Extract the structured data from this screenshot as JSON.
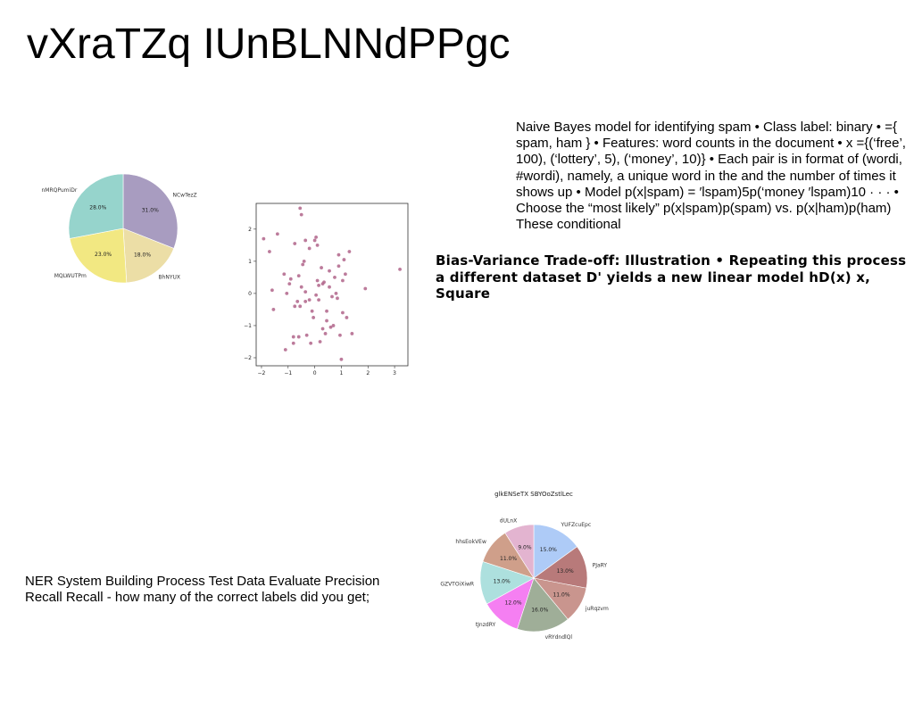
{
  "page": {
    "title": "vXraTZq IUnBLNNdPPgc",
    "paragraph_spam": "Naive Bayes model for identifying spam • Class label: binary • ={ spam, ham } • Features: word counts in the document • x ={(‘free’, 100), (‘lottery’, 5), (‘money’, 10)} • Each pair is in format of (wordi, #wordi), namely, a unique word in the and the number of times it shows up • Model p(x|spam) = ′lspam)5p(‘money ′lspam)10 · · · • Choose the “most likely” p(x|spam)p(spam) vs. p(x|ham)p(ham) These conditional",
    "paragraph_bias": "Bias-Variance Trade-off: Illustration • Repeating this process a different dataset D' yields a new linear model hD(x) x, Square",
    "paragraph_ner": "NER System Building Process Test Data Evaluate Precision Recall Recall - how many of the correct labels did you get;"
  },
  "chart_data": [
    {
      "type": "pie",
      "title": "",
      "labels": [
        "NCwTezZ",
        "BhNYUX",
        "MQLWUTPm",
        "nMRQPumiDr"
      ],
      "values": [
        31.0,
        18.0,
        23.0,
        28.0
      ],
      "value_labels": [
        "31.0%",
        "18.0%",
        "23.0%",
        "28.0%"
      ],
      "colors": [
        "#a89cc0",
        "#ecdea6",
        "#f2e882",
        "#96d4cc"
      ],
      "start_angle": 90,
      "direction": "clockwise"
    },
    {
      "type": "scatter",
      "title": "",
      "xlabel": "",
      "ylabel": "",
      "xlim": [
        -2.2,
        3.5
      ],
      "ylim": [
        -2.25,
        2.8
      ],
      "xticks": [
        -2,
        -1,
        0,
        1,
        2,
        3
      ],
      "yticks": [
        -2,
        -1,
        0,
        1,
        2
      ],
      "xtick_labels": [
        "−2",
        "−1",
        "0",
        "1",
        "2",
        "3"
      ],
      "ytick_labels": [
        "−2",
        "−1",
        "0",
        "1",
        "2"
      ],
      "color": "#b06489",
      "x": [
        -1.92,
        -1.7,
        -1.6,
        -1.4,
        -1.15,
        -0.95,
        -0.75,
        -0.55,
        -0.5,
        -0.35,
        -0.2,
        -0.45,
        0.05,
        0.1,
        0.25,
        0.55,
        0.9,
        1.3,
        1.15,
        0.85,
        0.35,
        0.15,
        -0.1,
        -0.35,
        -0.55,
        0.8,
        1.05,
        0.45,
        0.7,
        1.4,
        1.9,
        3.2,
        -1.55,
        -1.1,
        -0.8,
        -0.6,
        -0.3,
        -0.15,
        0.2,
        0.4,
        0.6,
        0.95,
        1.2,
        0.05,
        -0.75,
        -0.5,
        -0.2,
        0.15,
        0.45,
        0.75,
        -0.9,
        -1.05,
        -0.6,
        -0.4,
        0.0,
        0.3,
        0.55,
        1.1,
        -0.65,
        -0.35,
        0.9,
        1.0,
        -0.05,
        0.3,
        -0.8,
        0.1,
        0.65,
        1.05
      ],
      "y": [
        1.7,
        1.3,
        0.1,
        1.85,
        0.6,
        0.3,
        1.55,
        2.65,
        2.45,
        1.65,
        1.4,
        0.9,
        1.75,
        1.5,
        0.8,
        0.2,
        1.2,
        1.3,
        0.6,
        -0.15,
        0.35,
        -0.2,
        -0.55,
        -0.25,
        -0.4,
        0.0,
        -0.6,
        -0.85,
        -1.0,
        -1.25,
        0.15,
        0.75,
        -0.5,
        -1.75,
        -1.55,
        -1.35,
        -1.3,
        -1.55,
        -1.5,
        -1.25,
        -1.05,
        -1.3,
        -0.75,
        -0.05,
        -0.4,
        0.2,
        -0.2,
        0.25,
        -0.55,
        0.5,
        0.45,
        0.0,
        0.55,
        1.0,
        1.65,
        0.3,
        0.7,
        1.05,
        -0.25,
        0.05,
        0.85,
        -2.05,
        -0.75,
        -1.1,
        -1.35,
        0.4,
        -0.1,
        0.4
      ]
    },
    {
      "type": "pie",
      "title": "glkENSeTX SBYOoZstlLec",
      "labels": [
        "YUFZcuEpc",
        "PJaRY",
        "juRqzvm",
        "vRYdndlQl",
        "tJnzdRY",
        "GZVTOiXiwR",
        "hhsEokVEw",
        "dULnX"
      ],
      "values": [
        15.0,
        13.0,
        11.0,
        16.0,
        12.0,
        13.0,
        11.0,
        9.0
      ],
      "value_labels": [
        "15.0%",
        "13.0%",
        "11.0%",
        "16.0%",
        "12.0%",
        "13.0%",
        "11.0%",
        "9.0%"
      ],
      "colors": [
        "#aecbf7",
        "#b87a7a",
        "#c9958e",
        "#9fae98",
        "#f57ff2",
        "#ade0de",
        "#cf9f8a",
        "#e3b4d0"
      ],
      "start_angle": 90,
      "direction": "clockwise"
    }
  ]
}
